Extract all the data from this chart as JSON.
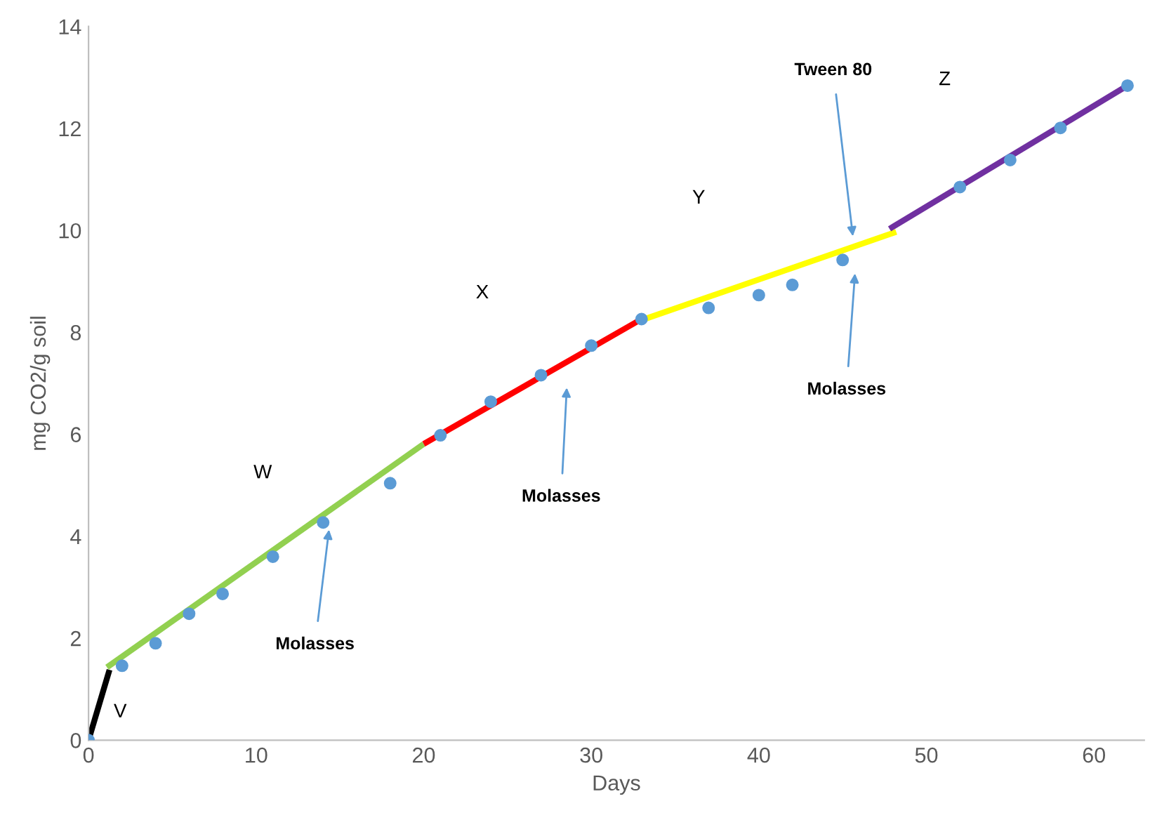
{
  "chart_data": {
    "type": "scatter",
    "xlabel": "Days",
    "ylabel": "mg CO2/g soil",
    "xlim": [
      0,
      63
    ],
    "ylim": [
      0,
      14
    ],
    "xticks": [
      0,
      10,
      20,
      30,
      40,
      50,
      60
    ],
    "yticks": [
      0,
      2,
      4,
      6,
      8,
      10,
      12,
      14
    ],
    "grid": false,
    "legend": false,
    "series": [
      {
        "marker": "circle",
        "color": "#5b9bd5",
        "x": [
          0,
          2,
          4,
          6,
          8,
          11,
          14,
          18,
          21,
          24,
          27,
          30,
          33,
          37,
          40,
          42,
          45,
          52,
          55,
          58,
          62
        ],
        "values": [
          0,
          1.46,
          1.9,
          2.48,
          2.87,
          3.6,
          4.27,
          5.04,
          5.98,
          6.64,
          7.16,
          7.74,
          8.26,
          8.48,
          8.73,
          8.93,
          9.42,
          10.85,
          11.38,
          12.01,
          12.84
        ]
      },
      {
        "type": "line",
        "color": "#000000",
        "x": [
          0,
          1.25
        ],
        "values": [
          0,
          1.38
        ]
      },
      {
        "type": "line",
        "color": "#92d050",
        "x": [
          1.1,
          20
        ],
        "values": [
          1.43,
          5.81
        ]
      },
      {
        "type": "line",
        "color": "#ff0000",
        "x": [
          20,
          33
        ],
        "values": [
          5.81,
          8.26
        ]
      },
      {
        "type": "line",
        "color": "#ffff00",
        "x": [
          33,
          48.2
        ],
        "values": [
          8.24,
          9.97
        ]
      },
      {
        "type": "line",
        "color": "#7030a0",
        "x": [
          47.8,
          62
        ],
        "values": [
          10.03,
          12.84
        ]
      }
    ],
    "annotations": [
      "V",
      "W",
      "X",
      "Y",
      "Z",
      {
        "text": "Molasses",
        "x": 14.35,
        "y": 4.13
      },
      "Molasses",
      "Molasses",
      "Tween 80"
    ]
  }
}
